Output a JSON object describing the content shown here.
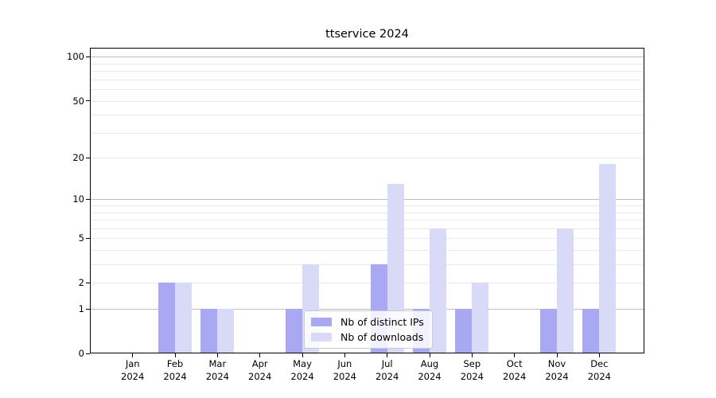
{
  "figure": {
    "title": "ttservice 2024",
    "background_color": "#ffffff"
  },
  "chart_data": {
    "type": "bar",
    "title": "ttservice 2024",
    "x_categories": [
      "Jan",
      "Feb",
      "Mar",
      "Apr",
      "May",
      "Jun",
      "Jul",
      "Aug",
      "Sep",
      "Oct",
      "Nov",
      "Dec"
    ],
    "x_year_label": "2024",
    "series": [
      {
        "name": "Nb of distinct IPs",
        "color": "#a8a8f3",
        "values": [
          0,
          2,
          1,
          0,
          1,
          0,
          3,
          1,
          1,
          0,
          1,
          1
        ]
      },
      {
        "name": "Nb of downloads",
        "color": "#d9d9f8",
        "values": [
          0,
          2,
          1,
          0,
          3,
          0,
          13,
          6,
          2,
          0,
          6,
          18
        ]
      }
    ],
    "xlabel": "",
    "ylabel": "",
    "y_scale": "log10(1+x)",
    "ylim": [
      0,
      115
    ],
    "y_tick_labels": [
      "100",
      "50",
      "20",
      "10",
      "5",
      "2",
      "1",
      "0"
    ],
    "y_tick_values": [
      100,
      50,
      20,
      10,
      5,
      2,
      1,
      0
    ],
    "gridlines": {
      "major": [
        100,
        10,
        1
      ],
      "minor": [
        90,
        80,
        70,
        60,
        50,
        40,
        30,
        20,
        9,
        8,
        7,
        6,
        5,
        4,
        3,
        2
      ]
    },
    "grid": true,
    "legend_position": "inside lower-center",
    "colors": {
      "spine": "#000000",
      "major_grid": "#bdbdbd",
      "minor_grid": "#e9e9e9",
      "legend_border": "#cbcbcb"
    }
  }
}
